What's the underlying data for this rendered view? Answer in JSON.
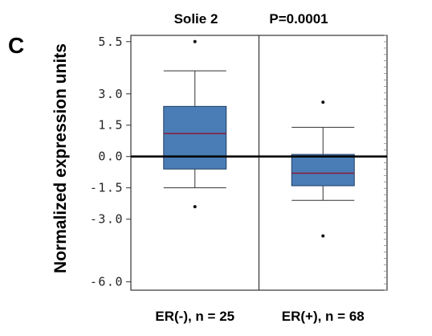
{
  "panel_label": "C",
  "chart_data": {
    "type": "box",
    "title": "Solie 2",
    "pvalue": "P=0.0001",
    "ylabel": "Normalized expression units",
    "ylim": [
      -6.4,
      5.8
    ],
    "yticks": [
      {
        "value": 5.5,
        "label": "5.5"
      },
      {
        "value": 3.0,
        "label": "3.0"
      },
      {
        "value": 1.5,
        "label": "1.5"
      },
      {
        "value": 0.0,
        "label": "0.0"
      },
      {
        "value": -1.5,
        "label": "-1.5"
      },
      {
        "value": -3.0,
        "label": "-3.0"
      },
      {
        "value": -6.0,
        "label": "-6.0"
      }
    ],
    "reference_line": 0,
    "box_color": "#4a7db5",
    "median_color": "#8b1a3c",
    "groups": [
      {
        "label": "ER(-), n = 25",
        "whisker_low": -1.5,
        "q1": -0.6,
        "median": 1.1,
        "q3": 2.4,
        "whisker_high": 4.1,
        "outliers": [
          5.5,
          -2.4
        ]
      },
      {
        "label": "ER(+), n = 68",
        "whisker_low": -2.1,
        "q1": -1.4,
        "median": -0.8,
        "q3": 0.1,
        "whisker_high": 1.4,
        "outliers": [
          2.6,
          -3.8
        ]
      }
    ]
  }
}
